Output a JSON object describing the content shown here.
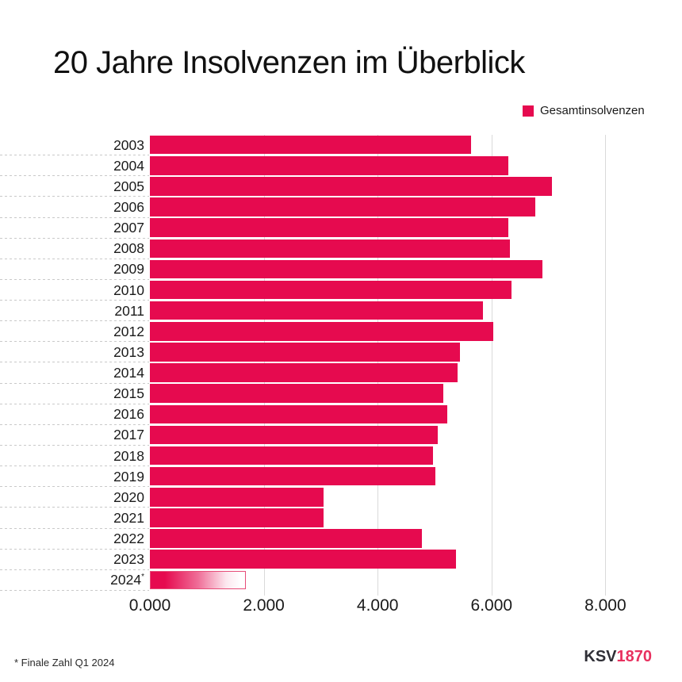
{
  "title": "20 Jahre Insolvenzen im Überblick",
  "legend": {
    "label": "Gesamtinsolvenzen",
    "color": "#e60a4f"
  },
  "footnote": "* Finale Zahl Q1 2024",
  "logo": {
    "part1": "KSV",
    "part2": "1870",
    "part1_color": "#2f2f36",
    "part2_color": "#e8315f"
  },
  "colors": {
    "bar": "#e60a4f",
    "gridline": "#dadada",
    "row_separator": "#c9c9c9",
    "text": "#1a1a1a",
    "provisional_border": "#e74d79",
    "provisional_gradient": [
      "#e60a4f",
      "#ffffff"
    ]
  },
  "chart_data": {
    "type": "bar",
    "orientation": "horizontal",
    "title": "20 Jahre Insolvenzen im Überblick",
    "series_name": "Gesamtinsolvenzen",
    "categories": [
      "2003",
      "2004",
      "2005",
      "2006",
      "2007",
      "2008",
      "2009",
      "2010",
      "2011",
      "2012",
      "2013",
      "2014",
      "2015",
      "2016",
      "2017",
      "2018",
      "2019",
      "2020",
      "2021",
      "2022",
      "2023",
      "2024*"
    ],
    "values": [
      5640,
      6300,
      7060,
      6770,
      6300,
      6320,
      6890,
      6350,
      5850,
      6030,
      5440,
      5410,
      5150,
      5220,
      5060,
      4970,
      5010,
      3050,
      3050,
      4780,
      5380,
      1690
    ],
    "provisional_category": "2024*",
    "provisional_note": "* Finale Zahl Q1 2024",
    "x_tick_labels": [
      "0.000",
      "2.000",
      "4.000",
      "6.000",
      "8.000"
    ],
    "x_tick_values": [
      0,
      2000,
      4000,
      6000,
      8000
    ],
    "xlim": [
      0,
      8000
    ],
    "grid": "vertical-on",
    "legend_position": "top-right"
  }
}
